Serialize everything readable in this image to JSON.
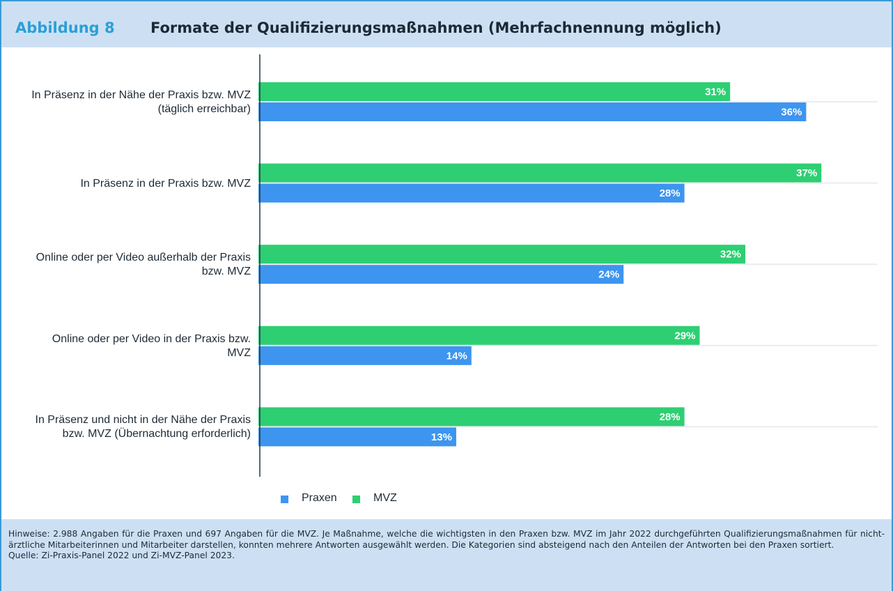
{
  "header": {
    "figure": "Abbildung 8",
    "title": "Formate der Qualifizierungsmaßnahmen (Mehrfachnennung möglich)"
  },
  "chart_data": {
    "type": "barh",
    "categories": [
      "In Präsenz in der Nähe der Praxis bzw. MVZ (täglich erreichbar)",
      "In Präsenz in der Praxis bzw. MVZ",
      "Online oder per Video außerhalb der Praxis bzw. MVZ",
      "Online oder per Video in der Praxis bzw. MVZ",
      "In Präsenz und nicht in der Nähe der Praxis bzw. MVZ (Übernachtung erforderlich)"
    ],
    "series": [
      {
        "name": "Praxen",
        "color": "#3d95f0",
        "values": [
          36,
          28,
          24,
          14,
          13
        ],
        "value_labels": [
          "36%",
          "28%",
          "24%",
          "14%",
          "13%"
        ]
      },
      {
        "name": "MVZ",
        "color": "#2ecf73",
        "values": [
          31,
          37,
          32,
          29,
          28
        ],
        "value_labels": [
          "31%",
          "37%",
          "32%",
          "29%",
          "28%"
        ]
      }
    ],
    "legend": "bottom"
  },
  "notes": {
    "hint": "Hinweise: 2.988 Angaben für die Praxen und 697 Angaben für die MVZ. Je Maßnahme, welche die wichtigsten in den Praxen bzw. MVZ im Jahr 2022 durchgeführten Qualifizierungsmaßnahmen für nicht-ärztliche Mitarbeiterinnen und Mitarbeiter darstellen, konnten mehrere Antworten ausgewählt werden. Die Kategorien sind absteigend nach den Anteilen der Antworten bei den Praxen sortiert.",
    "source": "Quelle: Zi-Praxis-Panel 2022 und Zi-MVZ-Panel 2023."
  }
}
